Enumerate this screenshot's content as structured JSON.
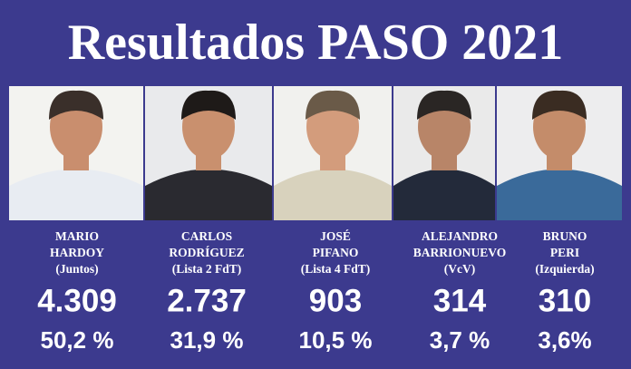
{
  "header": {
    "title": "Resultados PASO 2021"
  },
  "candidates": [
    {
      "name": [
        "MARIO",
        "HARDOY"
      ],
      "party": "(Juntos)",
      "votes": "4.309",
      "percent": "50,2 %"
    },
    {
      "name": [
        "CARLOS",
        "RODRÍGUEZ"
      ],
      "party": "(Lista 2 FdT)",
      "votes": "2.737",
      "percent": "31,9 %"
    },
    {
      "name": [
        "JOSÉ",
        "PIFANO"
      ],
      "party": "(Lista 4 FdT)",
      "votes": "903",
      "percent": "10,5 %"
    },
    {
      "name": [
        "ALEJANDRO",
        "BARRIONUEVO"
      ],
      "party": "(VcV)",
      "votes": "314",
      "percent": "3,7 %"
    },
    {
      "name": [
        "BRUNO",
        "PERI"
      ],
      "party": "(Izquierda)",
      "votes": "310",
      "percent": "3,6%"
    }
  ]
}
